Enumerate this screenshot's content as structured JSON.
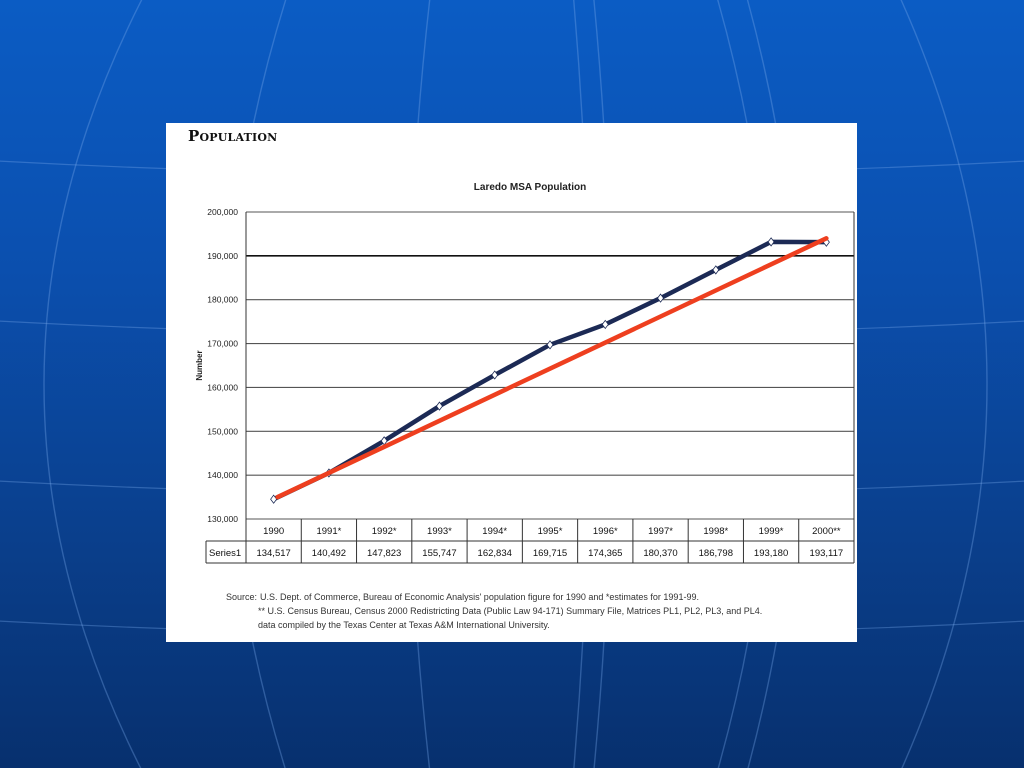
{
  "slide": {
    "panel_heading": "Population",
    "source_label": "Source:",
    "source_lines": [
      "U.S. Dept. of Commerce, Bureau of Economic Analysis' population figure for 1990 and *estimates for 1991-99.",
      "** U.S. Census Bureau, Census 2000 Redistricting Data (Public Law 94-171) Summary File, Matrices PL1, PL2, PL3, and PL4.",
      "data compiled by the Texas Center at Texas A&M International University."
    ]
  },
  "colors": {
    "background": "#0b4fae",
    "series_line": "#1c2a55",
    "marker": "#ffffff",
    "trend_line": "#ee3f1f",
    "grid": "#555555"
  },
  "chart_data": {
    "type": "line",
    "title": "Laredo MSA Population",
    "ylabel": "Number",
    "xlabel": "",
    "ylim": [
      130000,
      200000
    ],
    "yticks": [
      130000,
      140000,
      150000,
      160000,
      170000,
      180000,
      190000,
      200000
    ],
    "ytick_labels": [
      "130,000",
      "140,000",
      "150,000",
      "160,000",
      "170,000",
      "180,000",
      "190,000",
      "200,000"
    ],
    "categories": [
      "1990",
      "1991*",
      "1992*",
      "1993*",
      "1994*",
      "1995*",
      "1996*",
      "1997*",
      "1998*",
      "1999*",
      "2000**"
    ],
    "series": [
      {
        "name": "Series1",
        "values": [
          134517,
          140492,
          147823,
          155747,
          162834,
          169715,
          174365,
          180370,
          186798,
          193180,
          193117
        ],
        "value_labels": [
          "134,517",
          "140,492",
          "147,823",
          "155,747",
          "162,834",
          "169,715",
          "174,365",
          "180,370",
          "186,798",
          "193,180",
          "193,117"
        ]
      }
    ],
    "annotation": {
      "type": "trend-line",
      "from": {
        "x": "1990",
        "y": 135000
      },
      "to": {
        "x": "2000**",
        "y": 194000
      }
    },
    "grid": true,
    "data_table": true
  }
}
